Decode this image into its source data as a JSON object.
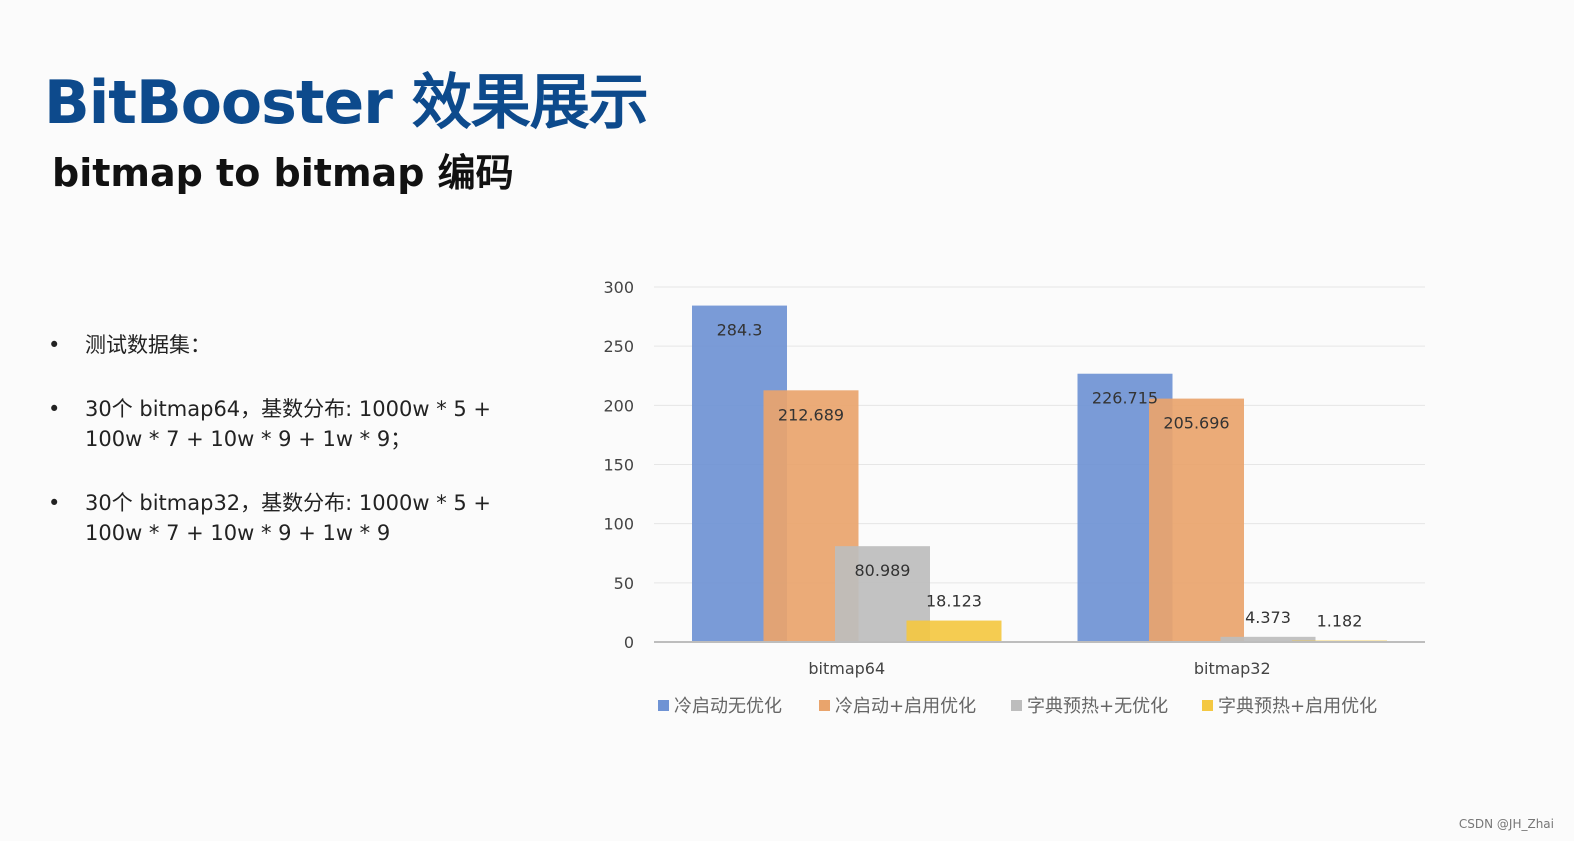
{
  "slide": {
    "title": "BitBooster 效果展示",
    "subtitle": "bitmap to bitmap 编码",
    "bullets": [
      {
        "lines": [
          "测试数据集："
        ]
      },
      {
        "lines": [
          "30个 bitmap64，基数分布: 1000w * 5 +",
          "100w * 7 + 10w * 9 + 1w * 9；"
        ]
      },
      {
        "lines": [
          "30个 bitmap32，基数分布: 1000w * 5 +",
          "100w * 7 + 10w * 9 + 1w * 9"
        ]
      }
    ],
    "bullet_marker": "•"
  },
  "watermark": "CSDN @JH_Zhai",
  "chart_data": {
    "type": "bar",
    "title": "",
    "xlabel": "",
    "ylabel": "",
    "categories": [
      "bitmap64",
      "bitmap32"
    ],
    "ylim": [
      0,
      300
    ],
    "yticks": [
      0,
      50,
      100,
      150,
      200,
      250,
      300
    ],
    "grid": true,
    "legend_position": "bottom",
    "series": [
      {
        "name": "冷启动无优化",
        "values": [
          284.3,
          226.715
        ],
        "labels": [
          "284.3",
          "226.715"
        ],
        "color": "#6f93d4"
      },
      {
        "name": "冷启动+启用优化",
        "values": [
          212.689,
          205.696
        ],
        "labels": [
          "212.689",
          "205.696"
        ],
        "color": "#e9a46c"
      },
      {
        "name": "字典预热+无优化",
        "values": [
          80.989,
          4.373
        ],
        "labels": [
          "80.989",
          "4.373"
        ],
        "color": "#bdbdbd"
      },
      {
        "name": "字典预热+启用优化",
        "values": [
          18.123,
          1.182
        ],
        "labels": [
          "18.123",
          "1.182"
        ],
        "color": "#f4c842"
      }
    ]
  }
}
